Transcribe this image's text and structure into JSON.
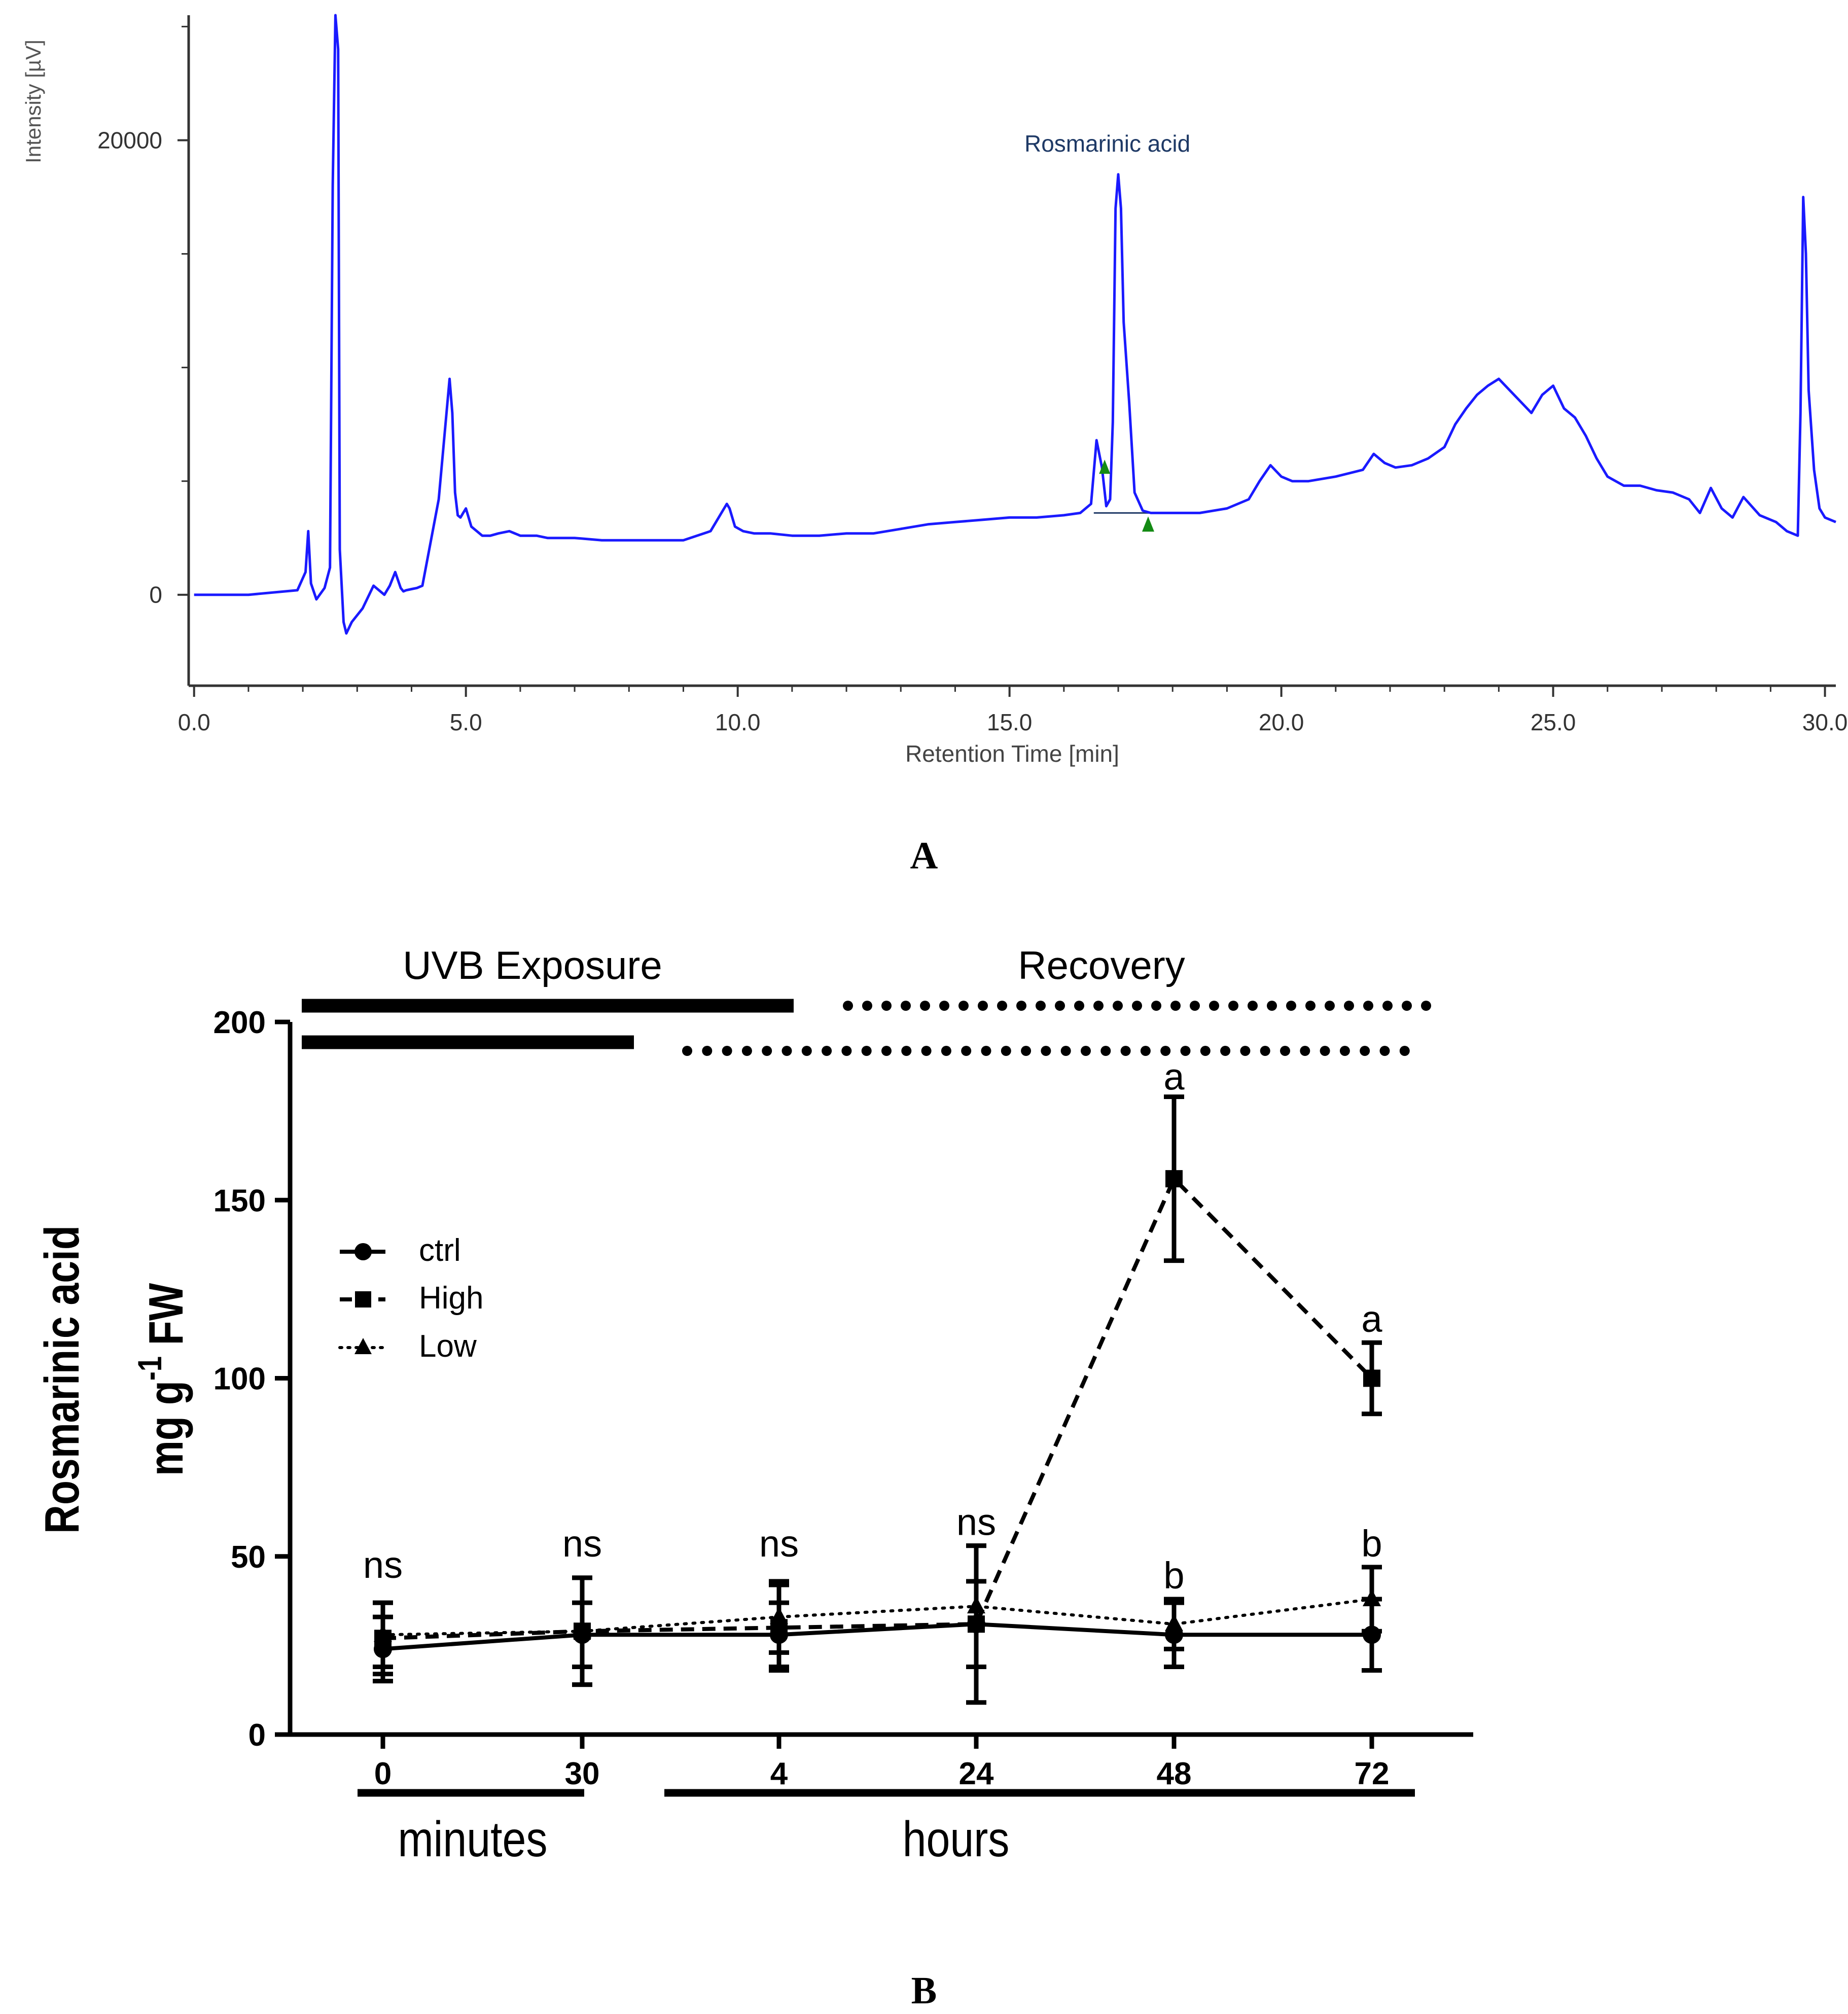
{
  "colors": {
    "trace": "#1a1aff",
    "peak_label": "#1f3a66",
    "marker": "#138a13",
    "axis_a": "#333333",
    "ink": "#000000"
  },
  "panel_labels": {
    "a": "A",
    "b": "B"
  },
  "chart_data": [
    {
      "id": "A",
      "type": "line",
      "title": "",
      "xlabel": "Retention Time [min]",
      "ylabel": "Intensity [µV]",
      "xlim": [
        -0.1,
        30.2
      ],
      "ylim": [
        -4000,
        25500
      ],
      "x_ticks": [
        0,
        5,
        10,
        15,
        20,
        25,
        30
      ],
      "x_tick_labels": [
        "0.0",
        "5.0",
        "10.0",
        "15.0",
        "20.0",
        "25.0",
        "30.0"
      ],
      "y_ticks": [
        0,
        20000
      ],
      "y_tick_labels": [
        "0",
        "20000"
      ],
      "y_minor_ticks": [
        5000,
        10000,
        15000,
        25000
      ],
      "annotation": {
        "text": "Rosmarinic acid",
        "x": 16.8,
        "y": 19500
      },
      "peak_start": {
        "x": 16.75,
        "y": 5500
      },
      "peak_end": {
        "x": 17.55,
        "y": 3000
      },
      "baseline": {
        "x0": 16.55,
        "x1": 18.1,
        "y": 3600
      },
      "series": [
        {
          "name": "chromatogram",
          "x": [
            0,
            1.0,
            1.9,
            2.05,
            2.1,
            2.15,
            2.25,
            2.4,
            2.5,
            2.55,
            2.6,
            2.65,
            2.68,
            2.75,
            2.8,
            2.9,
            3.1,
            3.3,
            3.5,
            3.6,
            3.7,
            3.8,
            3.85,
            3.9,
            4.0,
            4.1,
            4.2,
            4.5,
            4.7,
            4.75,
            4.8,
            4.85,
            4.9,
            4.95,
            5.0,
            5.1,
            5.3,
            5.45,
            5.6,
            5.8,
            6.0,
            6.3,
            6.5,
            7.0,
            7.5,
            8.0,
            8.5,
            9.0,
            9.5,
            9.7,
            9.8,
            9.85,
            9.95,
            10.1,
            10.3,
            10.6,
            11.0,
            11.5,
            12.0,
            12.5,
            13.0,
            13.5,
            14.0,
            14.5,
            15.0,
            15.5,
            16.0,
            16.3,
            16.5,
            16.6,
            16.7,
            16.78,
            16.85,
            16.9,
            16.95,
            17.0,
            17.05,
            17.1,
            17.2,
            17.3,
            17.45,
            17.6,
            18.0,
            18.5,
            19.0,
            19.4,
            19.6,
            19.8,
            20.0,
            20.2,
            20.5,
            21.0,
            21.5,
            21.7,
            21.9,
            22.1,
            22.4,
            22.7,
            23.0,
            23.2,
            23.4,
            23.6,
            23.8,
            24.0,
            24.2,
            24.4,
            24.6,
            24.8,
            25.0,
            25.2,
            25.4,
            25.6,
            25.8,
            26.0,
            26.3,
            26.6,
            26.9,
            27.2,
            27.5,
            27.7,
            27.9,
            28.1,
            28.3,
            28.5,
            28.8,
            29.1,
            29.3,
            29.5,
            29.55,
            29.6,
            29.65,
            29.7,
            29.8,
            29.9,
            30.0,
            30.2
          ],
          "y": [
            0,
            0,
            200,
            1000,
            2800,
            500,
            -200,
            300,
            1200,
            18000,
            25500,
            24000,
            2000,
            -1200,
            -1700,
            -1200,
            -600,
            400,
            0,
            400,
            1000,
            300,
            150,
            200,
            250,
            300,
            400,
            4200,
            9500,
            8000,
            4500,
            3500,
            3400,
            3600,
            3800,
            3000,
            2600,
            2600,
            2700,
            2800,
            2600,
            2600,
            2500,
            2500,
            2400,
            2400,
            2400,
            2400,
            2800,
            3600,
            4000,
            3800,
            3000,
            2800,
            2700,
            2700,
            2600,
            2600,
            2700,
            2700,
            2900,
            3100,
            3200,
            3300,
            3400,
            3400,
            3500,
            3600,
            4000,
            6800,
            5600,
            3900,
            4200,
            7600,
            17000,
            18500,
            17000,
            12000,
            8500,
            4500,
            3700,
            3600,
            3600,
            3600,
            3800,
            4200,
            5000,
            5700,
            5200,
            5000,
            5000,
            5200,
            5500,
            6200,
            5800,
            5600,
            5700,
            6000,
            6500,
            7500,
            8200,
            8800,
            9200,
            9500,
            9000,
            8500,
            8000,
            8800,
            9200,
            8200,
            7800,
            7000,
            6000,
            5200,
            4800,
            4800,
            4600,
            4500,
            4200,
            3600,
            4700,
            3800,
            3400,
            4300,
            3500,
            3200,
            2800,
            2600,
            8000,
            17500,
            15000,
            9000,
            5500,
            3800,
            3400,
            3200
          ]
        }
      ]
    },
    {
      "id": "B",
      "type": "line",
      "title": "",
      "xlabel": "",
      "ylabel_line1": "Rosmarinic acid",
      "ylabel_line2_prefix": "mg g",
      "ylabel_sup": "-1",
      "ylabel_line2_suffix": " FW",
      "ylim": [
        0,
        200
      ],
      "y_ticks": [
        0,
        50,
        100,
        150,
        200
      ],
      "y_tick_labels": [
        "0",
        "50",
        "100",
        "150",
        "200"
      ],
      "categories": [
        "0",
        "30",
        "4",
        "24",
        "48",
        "72"
      ],
      "series": [
        {
          "name": "ctrl",
          "marker": "circle",
          "line": "solid",
          "values": [
            24,
            28,
            28,
            31,
            28,
            28
          ],
          "errors": [
            9,
            9,
            9,
            12,
            9,
            10
          ]
        },
        {
          "name": "High",
          "marker": "square",
          "line": "dashed",
          "values": [
            27,
            29,
            30,
            31,
            156,
            100
          ],
          "errors": [
            10,
            15,
            12,
            22,
            23,
            10
          ]
        },
        {
          "name": "Low",
          "marker": "triangle",
          "line": "dotted",
          "values": [
            28,
            29,
            33,
            36,
            31,
            38
          ],
          "errors": [
            9,
            15,
            10,
            17,
            7,
            9
          ]
        }
      ],
      "significance": [
        {
          "category": "0",
          "label": "ns",
          "value": 44
        },
        {
          "category": "30",
          "label": "ns",
          "value": 50
        },
        {
          "category": "4",
          "label": "ns",
          "value": 50
        },
        {
          "category": "24",
          "label": "ns",
          "value": 56
        },
        {
          "category": "48",
          "label": "a",
          "value": 181
        },
        {
          "category": "48",
          "label": "b",
          "value": 41
        },
        {
          "category": "72",
          "label": "a",
          "value": 113
        },
        {
          "category": "72",
          "label": "b",
          "value": 50
        }
      ],
      "phase_labels": {
        "uvb": "UVB Exposure",
        "recovery": "Recovery"
      },
      "time_units": {
        "minutes": "minutes",
        "hours": "hours"
      },
      "legend": [
        "ctrl",
        "High",
        "Low"
      ],
      "legend_placement": "left-middle"
    }
  ]
}
